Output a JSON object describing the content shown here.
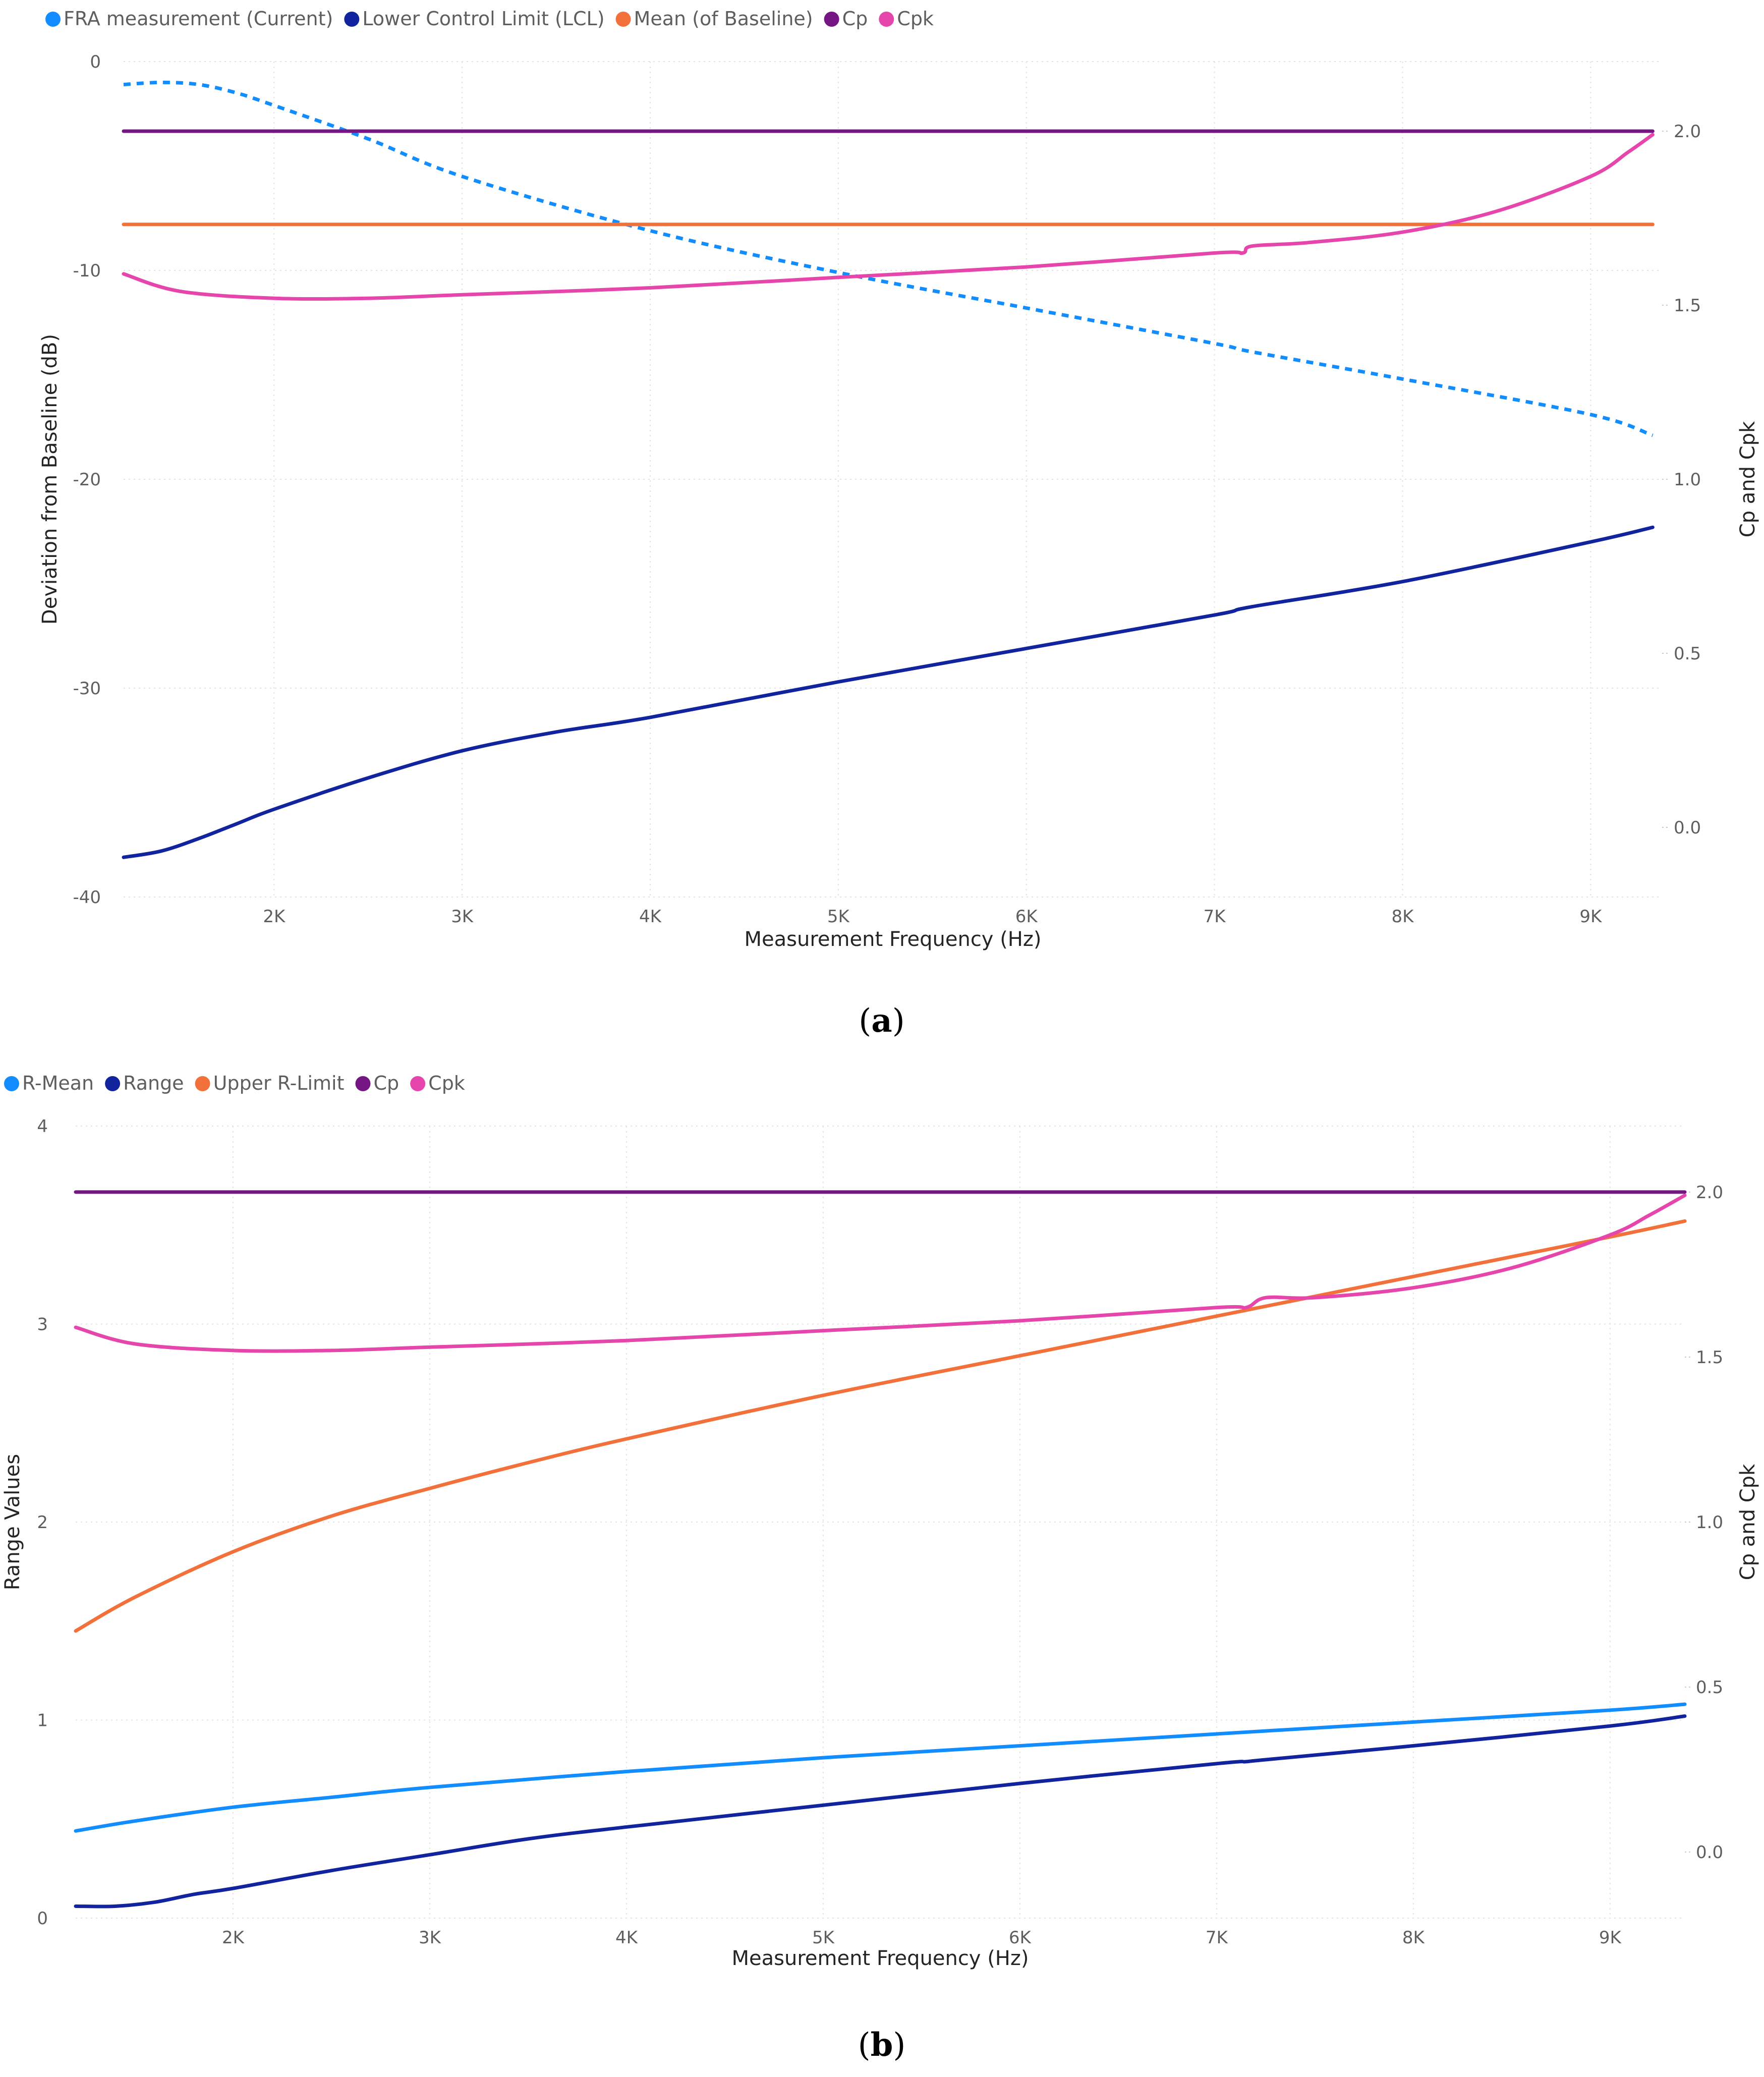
{
  "chart_data": [
    {
      "type": "line",
      "caption_label": "a",
      "legend": [
        "FRA measurement (Current)",
        "Lower Control Limit (LCL)",
        "Mean (of Baseline)",
        "Cp",
        "Cpk"
      ],
      "xlabel": "Measurement Frequency (Hz)",
      "ylabel": "Deviation from Baseline (dB)",
      "y2label": "Cp and Cpk",
      "xlim": [
        1200,
        9380
      ],
      "ylim": [
        -40,
        0
      ],
      "y2lim": [
        -0.2,
        2.2
      ],
      "x_ticks": [
        2000,
        3000,
        4000,
        5000,
        6000,
        7000,
        8000,
        9000
      ],
      "x_tick_labels": [
        "2K",
        "3K",
        "4K",
        "5K",
        "6K",
        "7K",
        "8K",
        "9K"
      ],
      "y_ticks": [
        0,
        -10,
        -20,
        -30,
        -40
      ],
      "y_tick_labels": [
        "0",
        "-10",
        "-20",
        "-30",
        "-40"
      ],
      "y2_ticks": [
        2.0,
        1.5,
        1.0,
        0.5,
        0.0
      ],
      "y2_tick_labels": [
        "2.0",
        "1.5",
        "1.0",
        "0.5",
        "0.0"
      ],
      "gridlines": true,
      "series": [
        {
          "name": "FRA measurement (Current)",
          "color": "#118dff",
          "axis": "left",
          "dash": true,
          "x": [
            1200,
            1400,
            1600,
            1800,
            2000,
            2500,
            3000,
            4000,
            5000,
            6000,
            7000,
            7200,
            8000,
            9000,
            9330
          ],
          "y": [
            -1.1,
            -1.0,
            -1.1,
            -1.5,
            -2.1,
            -3.7,
            -5.5,
            -8.1,
            -10.1,
            -11.8,
            -13.5,
            -13.9,
            -15.2,
            -16.9,
            -17.9
          ]
        },
        {
          "name": "Lower Control Limit (LCL)",
          "color": "#12239e",
          "axis": "left",
          "x": [
            1200,
            1400,
            1600,
            1800,
            2000,
            2500,
            3000,
            3500,
            4000,
            5000,
            6000,
            7000,
            7200,
            8000,
            9000,
            9330
          ],
          "y": [
            -38.1,
            -37.8,
            -37.2,
            -36.5,
            -35.8,
            -34.3,
            -33.0,
            -32.1,
            -31.4,
            -29.7,
            -28.1,
            -26.5,
            -26.1,
            -24.9,
            -23.0,
            -22.3
          ]
        },
        {
          "name": "Mean (of Baseline)",
          "color": "#f2713a",
          "axis": "left",
          "x": [
            1200,
            9330
          ],
          "y": [
            -7.8,
            -7.8
          ]
        },
        {
          "name": "Cp",
          "color": "#761685",
          "axis": "right",
          "x": [
            1200,
            9330
          ],
          "y": [
            2.0,
            2.0
          ]
        },
        {
          "name": "Cpk",
          "color": "#e645ab",
          "axis": "right",
          "x": [
            1200,
            1500,
            2000,
            2500,
            3000,
            4000,
            5000,
            6000,
            7000,
            7150,
            7200,
            7500,
            8000,
            8500,
            9000,
            9200,
            9330
          ],
          "y": [
            1.59,
            1.54,
            1.52,
            1.52,
            1.53,
            1.55,
            1.58,
            1.61,
            1.65,
            1.65,
            1.67,
            1.68,
            1.71,
            1.77,
            1.87,
            1.94,
            1.99
          ]
        }
      ]
    },
    {
      "type": "line",
      "caption_label": "b",
      "legend": [
        "R-Mean",
        "Range",
        "Upper R-Limit",
        "Cp",
        "Cpk"
      ],
      "xlabel": "Measurement Frequency (Hz)",
      "ylabel": "Range Values",
      "y2label": "Cp and Cpk",
      "xlim": [
        1200,
        9380
      ],
      "ylim": [
        0,
        4
      ],
      "y2lim": [
        -0.2,
        2.2
      ],
      "x_ticks": [
        2000,
        3000,
        4000,
        5000,
        6000,
        7000,
        8000,
        9000
      ],
      "x_tick_labels": [
        "2K",
        "3K",
        "4K",
        "5K",
        "6K",
        "7K",
        "8K",
        "9K"
      ],
      "y_ticks": [
        4,
        3,
        2,
        1,
        0
      ],
      "y_tick_labels": [
        "4",
        "3",
        "2",
        "1",
        "0"
      ],
      "y2_ticks": [
        2.0,
        1.5,
        1.0,
        0.5,
        0.0
      ],
      "y2_tick_labels": [
        "2.0",
        "1.5",
        "1.0",
        "0.5",
        "0.0"
      ],
      "gridlines": true,
      "series": [
        {
          "name": "R-Mean",
          "color": "#118dff",
          "axis": "left",
          "x": [
            1200,
            1500,
            2000,
            2500,
            3000,
            4000,
            5000,
            6000,
            7000,
            8000,
            9000,
            9380
          ],
          "y": [
            0.44,
            0.49,
            0.56,
            0.61,
            0.66,
            0.74,
            0.81,
            0.87,
            0.93,
            0.99,
            1.05,
            1.08
          ]
        },
        {
          "name": "Range",
          "color": "#12239e",
          "axis": "left",
          "x": [
            1200,
            1400,
            1600,
            1800,
            2000,
            2500,
            3000,
            3500,
            4000,
            5000,
            6000,
            7000,
            7150,
            7250,
            8000,
            9000,
            9380
          ],
          "y": [
            0.06,
            0.06,
            0.08,
            0.12,
            0.15,
            0.24,
            0.32,
            0.4,
            0.46,
            0.57,
            0.68,
            0.78,
            0.79,
            0.8,
            0.87,
            0.97,
            1.02
          ]
        },
        {
          "name": "Upper R-Limit",
          "color": "#f2713a",
          "axis": "left",
          "x": [
            1200,
            1500,
            2000,
            2500,
            3000,
            3500,
            4000,
            5000,
            6000,
            7000,
            8000,
            9000,
            9380
          ],
          "y": [
            1.45,
            1.62,
            1.85,
            2.03,
            2.17,
            2.3,
            2.42,
            2.64,
            2.84,
            3.04,
            3.24,
            3.44,
            3.52
          ]
        },
        {
          "name": "Cp",
          "color": "#761685",
          "axis": "right",
          "x": [
            1200,
            9380
          ],
          "y": [
            2.0,
            2.0
          ]
        },
        {
          "name": "Cpk",
          "color": "#e645ab",
          "axis": "right",
          "x": [
            1200,
            1500,
            2000,
            2500,
            3000,
            4000,
            5000,
            6000,
            7000,
            7150,
            7250,
            7500,
            8000,
            8500,
            9000,
            9200,
            9380
          ],
          "y": [
            1.59,
            1.54,
            1.52,
            1.52,
            1.53,
            1.55,
            1.58,
            1.61,
            1.65,
            1.65,
            1.68,
            1.68,
            1.71,
            1.77,
            1.87,
            1.93,
            1.99
          ]
        }
      ]
    }
  ]
}
